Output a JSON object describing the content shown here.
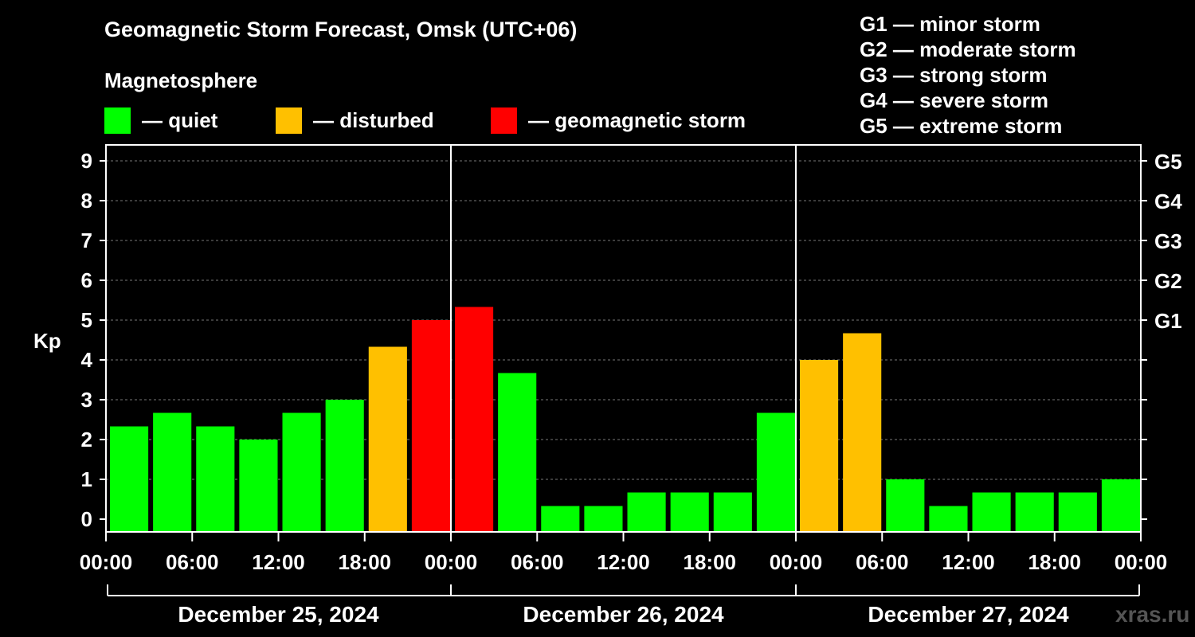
{
  "header": {
    "title": "Geomagnetic Storm Forecast, Omsk (UTC+06)",
    "subtitle": "Magnetosphere"
  },
  "legend": [
    {
      "label": "— quiet",
      "color": "#00ff00"
    },
    {
      "label": "— disturbed",
      "color": "#ffc000"
    },
    {
      "label": "— geomagnetic storm",
      "color": "#ff0000"
    }
  ],
  "storm_levels": [
    "G1 — minor storm",
    "G2 — moderate storm",
    "G3 — strong storm",
    "G4 — severe storm",
    "G5 — extreme storm"
  ],
  "watermark": "xras.ru",
  "chart_data": {
    "type": "bar",
    "ylabel": "Kp",
    "ylim": [
      0,
      9
    ],
    "y_ticks": [
      "0",
      "1",
      "2",
      "3",
      "4",
      "5",
      "6",
      "7",
      "8",
      "9"
    ],
    "right_ticks": [
      {
        "value": 5,
        "label": "G1"
      },
      {
        "value": 6,
        "label": "G2"
      },
      {
        "value": 7,
        "label": "G3"
      },
      {
        "value": 8,
        "label": "G4"
      },
      {
        "value": 9,
        "label": "G5"
      }
    ],
    "x_tick_labels": [
      "00:00",
      "06:00",
      "12:00",
      "18:00",
      "00:00",
      "06:00",
      "12:00",
      "18:00",
      "00:00",
      "06:00",
      "12:00",
      "18:00",
      "00:00"
    ],
    "days": [
      "December 25, 2024",
      "December 26, 2024",
      "December 27, 2024"
    ],
    "values": [
      2.33,
      2.67,
      2.33,
      2.0,
      2.67,
      3.0,
      4.33,
      5.0,
      5.33,
      3.67,
      0.33,
      0.33,
      0.67,
      0.67,
      0.67,
      2.67,
      4.0,
      4.67,
      1.0,
      0.33,
      0.67,
      0.67,
      0.67,
      1.0
    ],
    "colors": {
      "quiet": "#00ff00",
      "disturbed": "#ffc000",
      "storm": "#ff0000"
    },
    "categories": [
      "quiet",
      "quiet",
      "quiet",
      "quiet",
      "quiet",
      "quiet",
      "disturbed",
      "storm",
      "storm",
      "quiet",
      "quiet",
      "quiet",
      "quiet",
      "quiet",
      "quiet",
      "quiet",
      "disturbed",
      "disturbed",
      "quiet",
      "quiet",
      "quiet",
      "quiet",
      "quiet",
      "quiet"
    ],
    "grid": true
  }
}
